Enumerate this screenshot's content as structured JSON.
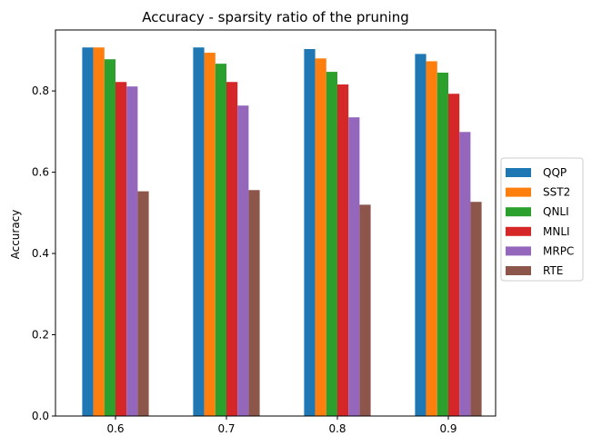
{
  "chart_data": {
    "type": "bar",
    "title": "Accuracy - sparsity ratio of the pruning",
    "xlabel": "",
    "ylabel": "Accuracy",
    "categories": [
      "0.6",
      "0.7",
      "0.8",
      "0.9"
    ],
    "ylim": [
      0,
      0.95
    ],
    "yticks": [
      "0.0",
      "0.2",
      "0.4",
      "0.6",
      "0.8"
    ],
    "grid": false,
    "legend_position": "center-right, outside",
    "series": [
      {
        "name": "QQP",
        "color": "#1f77b4",
        "values": [
          0.907,
          0.907,
          0.903,
          0.891
        ]
      },
      {
        "name": "SST2",
        "color": "#ff7f0e",
        "values": [
          0.907,
          0.894,
          0.88,
          0.873
        ]
      },
      {
        "name": "QNLI",
        "color": "#2ca02c",
        "values": [
          0.878,
          0.867,
          0.847,
          0.845
        ]
      },
      {
        "name": "MNLI",
        "color": "#d62728",
        "values": [
          0.822,
          0.822,
          0.816,
          0.793
        ]
      },
      {
        "name": "MRPC",
        "color": "#9467bd",
        "values": [
          0.811,
          0.764,
          0.735,
          0.699
        ]
      },
      {
        "name": "RTE",
        "color": "#8c564b",
        "values": [
          0.553,
          0.556,
          0.52,
          0.527
        ]
      }
    ]
  }
}
